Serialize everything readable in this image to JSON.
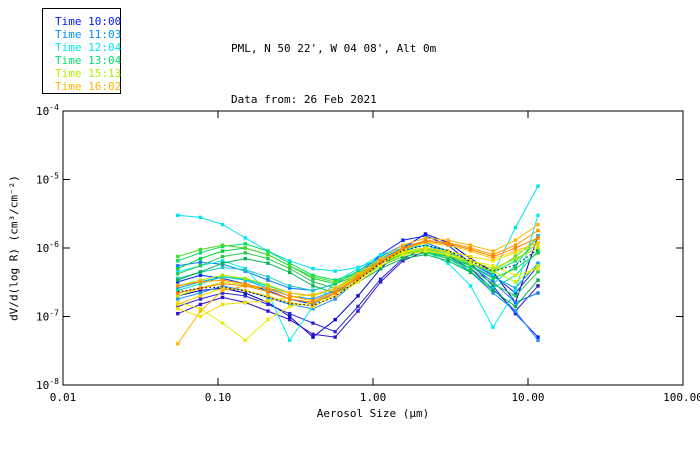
{
  "header": {
    "line1": "PML, N 50 22', W 04 08', Alt 0m",
    "line2": "Data from: 26 Feb 2021"
  },
  "legend": {
    "items": [
      {
        "label": "Time 10:00",
        "color": "#0018ff"
      },
      {
        "label": "Time 11:03",
        "color": "#0090ff"
      },
      {
        "label": "Time 12:04",
        "color": "#00e8ee"
      },
      {
        "label": "Time 13:04",
        "color": "#00e070"
      },
      {
        "label": "Time 15:13",
        "color": "#b0f000"
      },
      {
        "label": "Time 16:02",
        "color": "#ffb400"
      }
    ]
  },
  "chart_data": {
    "type": "line",
    "title": "PML, N 50 22', W 04 08', Alt 0m",
    "subtitle": "Data from: 26 Feb 2021",
    "xlabel": "Aerosol Size (μm)",
    "ylabel": "dV/d(log R) (cm³/cm⁻²)",
    "x_scale": "log",
    "y_scale": "log",
    "xlim": [
      0.01,
      100
    ],
    "ylim": [
      1e-08,
      0.0001
    ],
    "grid": false,
    "legend_position": "top-left",
    "marker": "square",
    "x_ticks": [
      {
        "value": 0.01,
        "label": "0.01"
      },
      {
        "value": 0.1,
        "label": "0.10"
      },
      {
        "value": 1,
        "label": "1.00"
      },
      {
        "value": 10,
        "label": "10.00"
      },
      {
        "value": 100,
        "label": "100.00"
      }
    ],
    "y_ticks": [
      {
        "value": 0.0001,
        "base": "10",
        "exp": "-4"
      },
      {
        "value": 1e-05,
        "base": "10",
        "exp": "-5"
      },
      {
        "value": 1e-06,
        "base": "10",
        "exp": "-6"
      },
      {
        "value": 1e-07,
        "base": "10",
        "exp": "-7"
      },
      {
        "value": 1e-08,
        "base": "10",
        "exp": "-8"
      }
    ],
    "x": [
      0.055,
      0.077,
      0.107,
      0.15,
      0.21,
      0.29,
      0.41,
      0.57,
      0.8,
      1.12,
      1.56,
      2.18,
      3.05,
      4.26,
      5.95,
      8.3,
      11.6
    ],
    "series": [
      {
        "time": "Time 10:00",
        "color": "#0000c8",
        "values": [
          2e-07,
          2.4e-07,
          2.6e-07,
          2.2e-07,
          1.6e-07,
          1e-07,
          5e-08,
          9e-08,
          2e-07,
          5e-07,
          1e-06,
          1.6e-06,
          1.2e-06,
          7e-07,
          4.5e-07,
          1.6e-07,
          1.5e-06
        ]
      },
      {
        "time": "Time 10:00",
        "color": "#0022ff",
        "values": [
          3.2e-07,
          4e-07,
          3.6e-07,
          3e-07,
          2.4e-07,
          1.8e-07,
          1.5e-07,
          2.2e-07,
          4e-07,
          8e-07,
          1.3e-06,
          1.5e-06,
          1.1e-06,
          6e-07,
          2.8e-07,
          1.1e-07,
          5e-08
        ]
      },
      {
        "time": "Time 10:00",
        "color": "#2929d6",
        "values": [
          1.4e-07,
          1.8e-07,
          2.2e-07,
          2e-07,
          1.5e-07,
          1.1e-07,
          8e-08,
          6e-08,
          1.4e-07,
          3.5e-07,
          7e-07,
          1e-06,
          9e-07,
          6e-07,
          4e-07,
          2.2e-07,
          5.5e-07
        ]
      },
      {
        "time": "Time 10:00",
        "color": "#3214d2",
        "values": [
          1.1e-07,
          1.5e-07,
          1.9e-07,
          1.6e-07,
          1.2e-07,
          9e-08,
          5.5e-08,
          5e-08,
          1.2e-07,
          3.2e-07,
          6.5e-07,
          9e-07,
          7.5e-07,
          5e-07,
          2.5e-07,
          1.2e-07,
          2.8e-07
        ]
      },
      {
        "time": "Time 11:03",
        "color": "#0f78ff",
        "values": [
          5.5e-07,
          6.2e-07,
          5.8e-07,
          4.6e-07,
          3.4e-07,
          2.6e-07,
          2.4e-07,
          3e-07,
          4.6e-07,
          7.5e-07,
          1.1e-06,
          1.2e-06,
          9e-07,
          5.5e-07,
          3.2e-07,
          1.6e-07,
          2.2e-07
        ]
      },
      {
        "time": "Time 11:03",
        "color": "#00a0ff",
        "values": [
          2.6e-07,
          3.2e-07,
          3.8e-07,
          3.4e-07,
          2.6e-07,
          2e-07,
          1.8e-07,
          2.4e-07,
          4.2e-07,
          7e-07,
          1e-06,
          1.1e-06,
          8.5e-07,
          5.5e-07,
          3.8e-07,
          2.6e-07,
          6e-07
        ]
      },
      {
        "time": "Time 11:03",
        "color": "#1e90ff",
        "values": [
          1.8e-07,
          2.2e-07,
          2.8e-07,
          2.4e-07,
          1.9e-07,
          1.5e-07,
          1.3e-07,
          1.8e-07,
          3.4e-07,
          6e-07,
          9e-07,
          1e-06,
          8e-07,
          4.5e-07,
          2.2e-07,
          1.2e-07,
          4.5e-08
        ]
      },
      {
        "time": "Time 12:04",
        "color": "#00e5ee",
        "values": [
          3e-06,
          2.8e-06,
          2.2e-06,
          1.4e-06,
          9e-07,
          6.5e-07,
          5e-07,
          4.6e-07,
          5.2e-07,
          7e-07,
          9.5e-07,
          1.1e-06,
          9e-07,
          6e-07,
          4.2e-07,
          2e-06,
          8e-06
        ]
      },
      {
        "time": "Time 12:04",
        "color": "#00f0f0",
        "values": [
          4.5e-07,
          5.5e-07,
          6.5e-07,
          5e-07,
          2.2e-07,
          4.5e-08,
          1.4e-07,
          3.2e-07,
          5e-07,
          8e-07,
          1e-06,
          9e-07,
          6e-07,
          2.8e-07,
          7e-08,
          2.4e-07,
          3e-06
        ]
      },
      {
        "time": "Time 12:04",
        "color": "#20c8c8",
        "values": [
          3.6e-07,
          4.4e-07,
          5.2e-07,
          4.8e-07,
          3.8e-07,
          2.8e-07,
          2.4e-07,
          3e-07,
          4.6e-07,
          7e-07,
          9e-07,
          1e-06,
          8e-07,
          5e-07,
          3e-07,
          5.5e-07,
          1.5e-06
        ]
      },
      {
        "time": "Time 12:04",
        "color": "#00dcb4",
        "values": [
          2.4e-07,
          3e-07,
          3.8e-07,
          3.5e-07,
          2.8e-07,
          2.2e-07,
          2e-07,
          2.6e-07,
          4e-07,
          6.5e-07,
          8.5e-07,
          9e-07,
          7e-07,
          4.5e-07,
          2.6e-07,
          4e-07,
          9e-07
        ]
      },
      {
        "time": "Time 13:04",
        "color": "#00e064",
        "values": [
          6.5e-07,
          8.5e-07,
          1.05e-06,
          1.15e-06,
          9e-07,
          6e-07,
          4e-07,
          3.4e-07,
          4.4e-07,
          6.5e-07,
          8.5e-07,
          9.5e-07,
          8e-07,
          6e-07,
          4.4e-07,
          6.5e-07,
          1.2e-06
        ]
      },
      {
        "time": "Time 13:04",
        "color": "#00d23c",
        "values": [
          5e-07,
          7e-07,
          9e-07,
          1e-06,
          8e-07,
          5.5e-07,
          3.6e-07,
          3e-07,
          4e-07,
          6e-07,
          8e-07,
          9e-07,
          7.5e-07,
          5.5e-07,
          3.6e-07,
          5e-07,
          8.5e-07
        ]
      },
      {
        "time": "Time 13:04",
        "color": "#28c850",
        "values": [
          4.2e-07,
          5.5e-07,
          7.5e-07,
          8.5e-07,
          7e-07,
          5e-07,
          3.2e-07,
          2.6e-07,
          3.6e-07,
          5.5e-07,
          7.5e-07,
          8.5e-07,
          7e-07,
          5e-07,
          3e-07,
          2e-07,
          4.5e-07
        ]
      },
      {
        "time": "Time 13:04",
        "color": "#00b450",
        "values": [
          3.4e-07,
          4.5e-07,
          6e-07,
          7e-07,
          6e-07,
          4.4e-07,
          2.8e-07,
          2.2e-07,
          3.2e-07,
          5e-07,
          7e-07,
          8e-07,
          6.5e-07,
          4.4e-07,
          2.4e-07,
          1.4e-07,
          3.4e-07
        ]
      },
      {
        "time": "Time 13:04",
        "color": "#46dc28",
        "values": [
          7.5e-07,
          9.5e-07,
          1.1e-06,
          1e-06,
          8e-07,
          5.5e-07,
          3.8e-07,
          3.2e-07,
          4.2e-07,
          6.2e-07,
          8.2e-07,
          9.2e-07,
          7.8e-07,
          5.8e-07,
          4.6e-07,
          7.5e-07,
          1.4e-06
        ]
      },
      {
        "time": "Time 15:13",
        "color": "#aae600",
        "values": [
          2.8e-07,
          3.4e-07,
          4e-07,
          3.6e-07,
          2.9e-07,
          2.2e-07,
          2e-07,
          2.6e-07,
          4e-07,
          6.5e-07,
          9e-07,
          1e-06,
          8.5e-07,
          6.5e-07,
          5e-07,
          7e-07,
          1e-06
        ]
      },
      {
        "time": "Time 15:13",
        "color": "#c8f000",
        "values": [
          2e-07,
          2.6e-07,
          3.2e-07,
          2.9e-07,
          2.3e-07,
          1.8e-07,
          1.6e-07,
          2.2e-07,
          3.6e-07,
          6e-07,
          8.5e-07,
          9.5e-07,
          8e-07,
          6e-07,
          4.6e-07,
          3.2e-07,
          5.5e-07
        ]
      },
      {
        "time": "Time 15:13",
        "color": "#e6ee00",
        "values": [
          1.6e-07,
          1.3e-07,
          8e-08,
          4.5e-08,
          9e-08,
          1.4e-07,
          1.6e-07,
          2e-07,
          3.2e-07,
          5.5e-07,
          8e-07,
          9e-07,
          8e-07,
          6.5e-07,
          5.5e-07,
          4e-07,
          5e-07
        ]
      },
      {
        "time": "Time 15:13",
        "color": "#f0e000",
        "values": [
          1.3e-07,
          1e-07,
          1.5e-07,
          1.6e-07,
          1.7e-07,
          1.9e-07,
          2.1e-07,
          2.5e-07,
          3.8e-07,
          6e-07,
          8.8e-07,
          1e-06,
          9e-07,
          7.5e-07,
          6.5e-07,
          8.5e-07,
          1.1e-06
        ]
      },
      {
        "time": "Time 16:02",
        "color": "#ffb400",
        "values": [
          4e-08,
          1.2e-07,
          2.4e-07,
          2.8e-07,
          2.6e-07,
          2.2e-07,
          2e-07,
          2.6e-07,
          4.2e-07,
          7e-07,
          1.1e-06,
          1.4e-06,
          1.3e-06,
          1.1e-06,
          9e-07,
          1.3e-06,
          2.2e-06
        ]
      },
      {
        "time": "Time 16:02",
        "color": "#ff9600",
        "values": [
          2.8e-07,
          3.2e-07,
          3.4e-07,
          3e-07,
          2.5e-07,
          2e-07,
          1.7e-07,
          2.3e-07,
          3.8e-07,
          6.5e-07,
          1e-06,
          1.3e-06,
          1.2e-06,
          1e-06,
          8e-07,
          1.1e-06,
          1.8e-06
        ]
      },
      {
        "time": "Time 16:02",
        "color": "#ffc800",
        "values": [
          1.5e-07,
          2e-07,
          2.6e-07,
          2.4e-07,
          2e-07,
          1.6e-07,
          1.4e-07,
          2e-07,
          3.4e-07,
          6e-07,
          9.5e-07,
          1.2e-06,
          1.1e-06,
          9e-07,
          7e-07,
          9e-07,
          1.2e-06
        ]
      },
      {
        "time": "Time 16:02",
        "color": "#ff8200",
        "values": [
          2.2e-07,
          2.6e-07,
          3e-07,
          2.8e-07,
          2.3e-07,
          1.8e-07,
          1.6e-07,
          2.2e-07,
          3.6e-07,
          6.2e-07,
          9.8e-07,
          1.25e-06,
          1.15e-06,
          9.5e-07,
          7.5e-07,
          1e-06,
          1.4e-06
        ]
      },
      {
        "time": "",
        "name": "black-dotted",
        "color": "#000000",
        "style": "dotted",
        "values": [
          2.3e-07,
          2.6e-07,
          2.7e-07,
          2.35e-07,
          1.9e-07,
          1.55e-07,
          1.45e-07,
          1.95e-07,
          3.4e-07,
          6e-07,
          9.2e-07,
          1.1e-06,
          9.2e-07,
          6.4e-07,
          4.6e-07,
          5.6e-07,
          9.5e-07
        ]
      }
    ]
  }
}
